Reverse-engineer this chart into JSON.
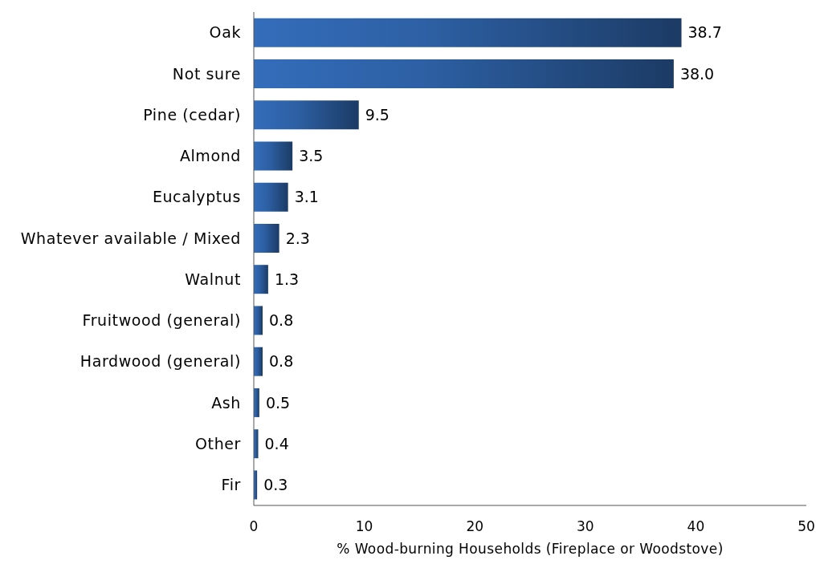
{
  "chart_data": {
    "type": "bar",
    "orientation": "horizontal",
    "categories": [
      "Oak",
      "Not sure",
      "Pine (cedar)",
      "Almond",
      "Eucalyptus",
      "Whatever available / Mixed",
      "Walnut",
      "Fruitwood (general)",
      "Hardwood (general)",
      "Ash",
      "Other",
      "Fir"
    ],
    "values": [
      38.7,
      38.0,
      9.5,
      3.5,
      3.1,
      2.3,
      1.3,
      0.8,
      0.8,
      0.5,
      0.4,
      0.3
    ],
    "value_labels": [
      "38.7",
      "38.0",
      "9.5",
      "3.5",
      "3.1",
      "2.3",
      "1.3",
      "0.8",
      "0.8",
      "0.5",
      "0.4",
      "0.3"
    ],
    "color": "#2b5b9c",
    "xlabel": "% Wood-burning Households (Fireplace or Woodstove)",
    "xlim": [
      0,
      50
    ],
    "xticks": [
      0,
      10,
      20,
      30,
      40,
      50
    ]
  }
}
